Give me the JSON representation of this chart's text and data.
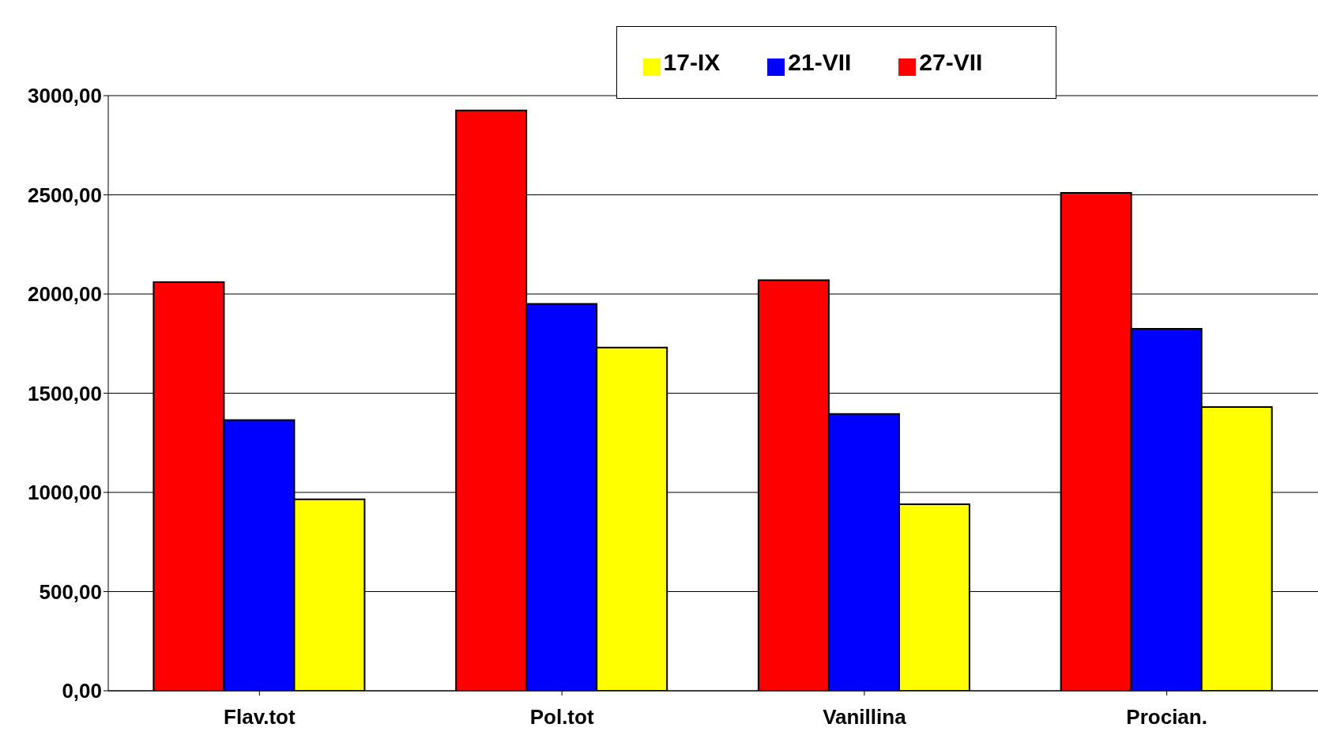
{
  "chart_data": {
    "type": "bar",
    "categories": [
      "Flav.tot",
      "Pol.tot",
      "Vanillina",
      "Procian."
    ],
    "series": [
      {
        "name": "27-VII",
        "color": "#ff0000",
        "values": [
          2060,
          2925,
          2070,
          2510
        ]
      },
      {
        "name": "21-VII",
        "color": "#0000ff",
        "values": [
          1365,
          1950,
          1395,
          1825
        ]
      },
      {
        "name": "17-IX",
        "color": "#ffff00",
        "values": [
          965,
          1730,
          940,
          1430
        ]
      }
    ],
    "ylim": [
      0,
      3000
    ],
    "yticks": [
      {
        "value": 0,
        "label": "0,00"
      },
      {
        "value": 500,
        "label": "500,00"
      },
      {
        "value": 1000,
        "label": "1000,00"
      },
      {
        "value": 1500,
        "label": "1500,00"
      },
      {
        "value": 2000,
        "label": "2000,00"
      },
      {
        "value": 2500,
        "label": "2500,00"
      },
      {
        "value": 3000,
        "label": "3000,00"
      }
    ],
    "grid": "y",
    "legend": "top"
  }
}
